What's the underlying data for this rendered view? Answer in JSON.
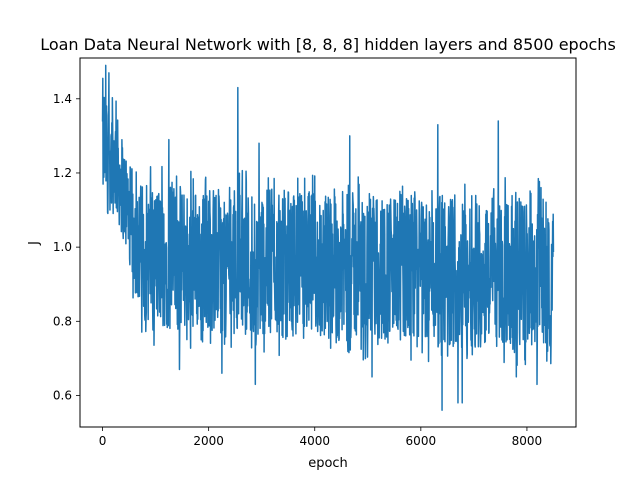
{
  "chart_data": {
    "type": "line",
    "title": "Loan Data Neural Network with [8, 8, 8] hidden layers and 8500 epochs",
    "xlabel": "epoch",
    "ylabel": "J",
    "xlim": [
      -425,
      8925
    ],
    "ylim": [
      0.515,
      1.51
    ],
    "x_ticks": [
      0,
      2000,
      4000,
      6000,
      8000
    ],
    "x_tick_labels": [
      "0",
      "2000",
      "4000",
      "6000",
      "8000"
    ],
    "y_ticks": [
      0.6,
      0.8,
      1.0,
      1.2,
      1.4
    ],
    "y_tick_labels": [
      "0.6",
      "0.8",
      "1.0",
      "1.2",
      "1.4"
    ],
    "grid": false,
    "series": [
      {
        "color": "#1f77b4",
        "envelope_x": [
          0,
          250,
          500,
          700,
          1000,
          2000,
          3000,
          4000,
          5000,
          6000,
          7000,
          8000,
          8500
        ],
        "envelope_upper": [
          1.45,
          1.36,
          1.22,
          1.17,
          1.16,
          1.15,
          1.15,
          1.14,
          1.14,
          1.13,
          1.13,
          1.13,
          1.12
        ],
        "envelope_lower": [
          1.12,
          1.09,
          0.97,
          0.82,
          0.79,
          0.78,
          0.77,
          0.76,
          0.75,
          0.75,
          0.74,
          0.74,
          0.74
        ],
        "peaks": [
          [
            60,
            1.49
          ],
          [
            120,
            1.47
          ],
          [
            2550,
            1.43
          ],
          [
            6320,
            1.33
          ],
          [
            7460,
            1.34
          ],
          [
            4660,
            1.3
          ],
          [
            1250,
            1.29
          ],
          [
            2950,
            1.28
          ]
        ],
        "troughs": [
          [
            2880,
            0.63
          ],
          [
            6400,
            0.56
          ],
          [
            6780,
            0.58
          ],
          [
            6700,
            0.58
          ],
          [
            1450,
            0.67
          ],
          [
            2250,
            0.66
          ],
          [
            5080,
            0.65
          ],
          [
            8190,
            0.63
          ],
          [
            7800,
            0.65
          ]
        ]
      }
    ]
  }
}
